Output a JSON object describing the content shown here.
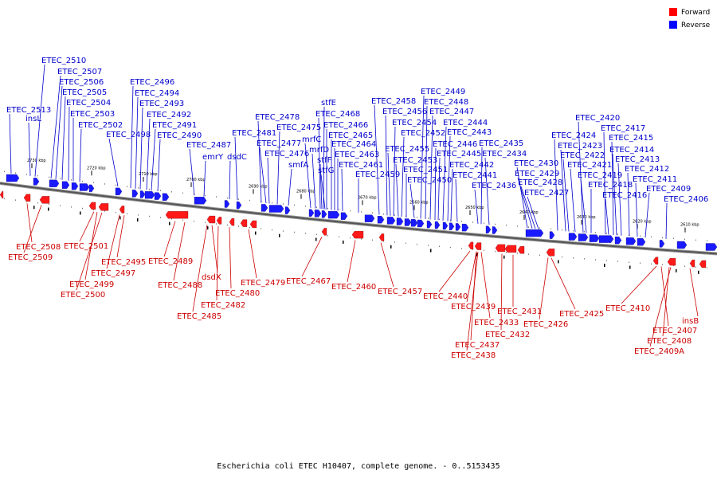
{
  "legend": [
    {
      "label": "Forward",
      "color": "#ff0000"
    },
    {
      "label": "Reverse",
      "color": "#0000ff"
    }
  ],
  "caption": "Escherichia coli ETEC H10407, complete genome. - 0..5153435",
  "scale_ticks": [
    "2730 kbp",
    "2720 kbp",
    "2710 kbp",
    "2700 kbp",
    "2690 kbp",
    "2680 kbp",
    "2670 kbp",
    "2660 kbp",
    "2650 kbp",
    "2640 kbp",
    "2630 kbp",
    "2620 kbp",
    "2610 kbp"
  ],
  "reverse_labels": [
    "ETEC_2513",
    "insL",
    "ETEC_2510",
    "ETEC_2507",
    "ETEC_2506",
    "ETEC_2505",
    "ETEC_2504",
    "ETEC_2503",
    "ETEC_2502",
    "ETEC_2498",
    "ETEC_2496",
    "ETEC_2494",
    "ETEC_2493",
    "ETEC_2492",
    "ETEC_2491",
    "ETEC_2490",
    "ETEC_2487",
    "emrY",
    "dsdC",
    "ETEC_2481",
    "ETEC_2478",
    "ETEC_2477",
    "ETEC_2476",
    "ETEC_2475",
    "smfA",
    "mrfC",
    "mrfD",
    "stfE",
    "ETEC_2468",
    "stfF",
    "stfG",
    "ETEC_2466",
    "ETEC_2465",
    "ETEC_2464",
    "ETEC_2463",
    "ETEC_2461",
    "ETEC_2459",
    "ETEC_2458",
    "ETEC_2456",
    "ETEC_2455",
    "ETEC_2454",
    "ETEC_2453",
    "ETEC_2452",
    "ETEC_2451",
    "ETEC_2450",
    "ETEC_2449",
    "ETEC_2448",
    "ETEC_2447",
    "ETEC_2446",
    "ETEC_2445",
    "ETEC_2444",
    "ETEC_2443",
    "ETEC_2442",
    "ETEC_2441",
    "ETEC_2436",
    "ETEC_2435",
    "ETEC_2434",
    "ETEC_2430",
    "ETEC_2429",
    "ETEC_2428",
    "ETEC_2427",
    "ETEC_2424",
    "ETEC_2423",
    "ETEC_2422",
    "ETEC_2421",
    "ETEC_2420",
    "ETEC_2419",
    "ETEC_2418",
    "ETEC_2417",
    "ETEC_2416",
    "ETEC_2415",
    "ETEC_2414",
    "ETEC_2413",
    "ETEC_2412",
    "ETEC_2411",
    "ETEC_2409",
    "ETEC_2406"
  ],
  "forward_labels": [
    "ETEC_2508",
    "ETEC_2509",
    "ETEC_2501",
    "ETEC_2499",
    "ETEC_2500",
    "ETEC_2497",
    "ETEC_2495",
    "ETEC_2489",
    "ETEC_2488",
    "dsdX",
    "ETEC_2485",
    "ETEC_2482",
    "ETEC_2480",
    "ETEC_2479",
    "ETEC_2467",
    "ETEC_2460",
    "ETEC_2457",
    "ETEC_2440",
    "ETEC_2439",
    "ETEC_2437",
    "ETEC_2438",
    "ETEC_2433",
    "ETEC_2432",
    "ETEC_2431",
    "ETEC_2426",
    "ETEC_2425",
    "ETEC_2410",
    "ETEC_2407",
    "ETEC_2408",
    "ETEC_2409A",
    "insB"
  ]
}
